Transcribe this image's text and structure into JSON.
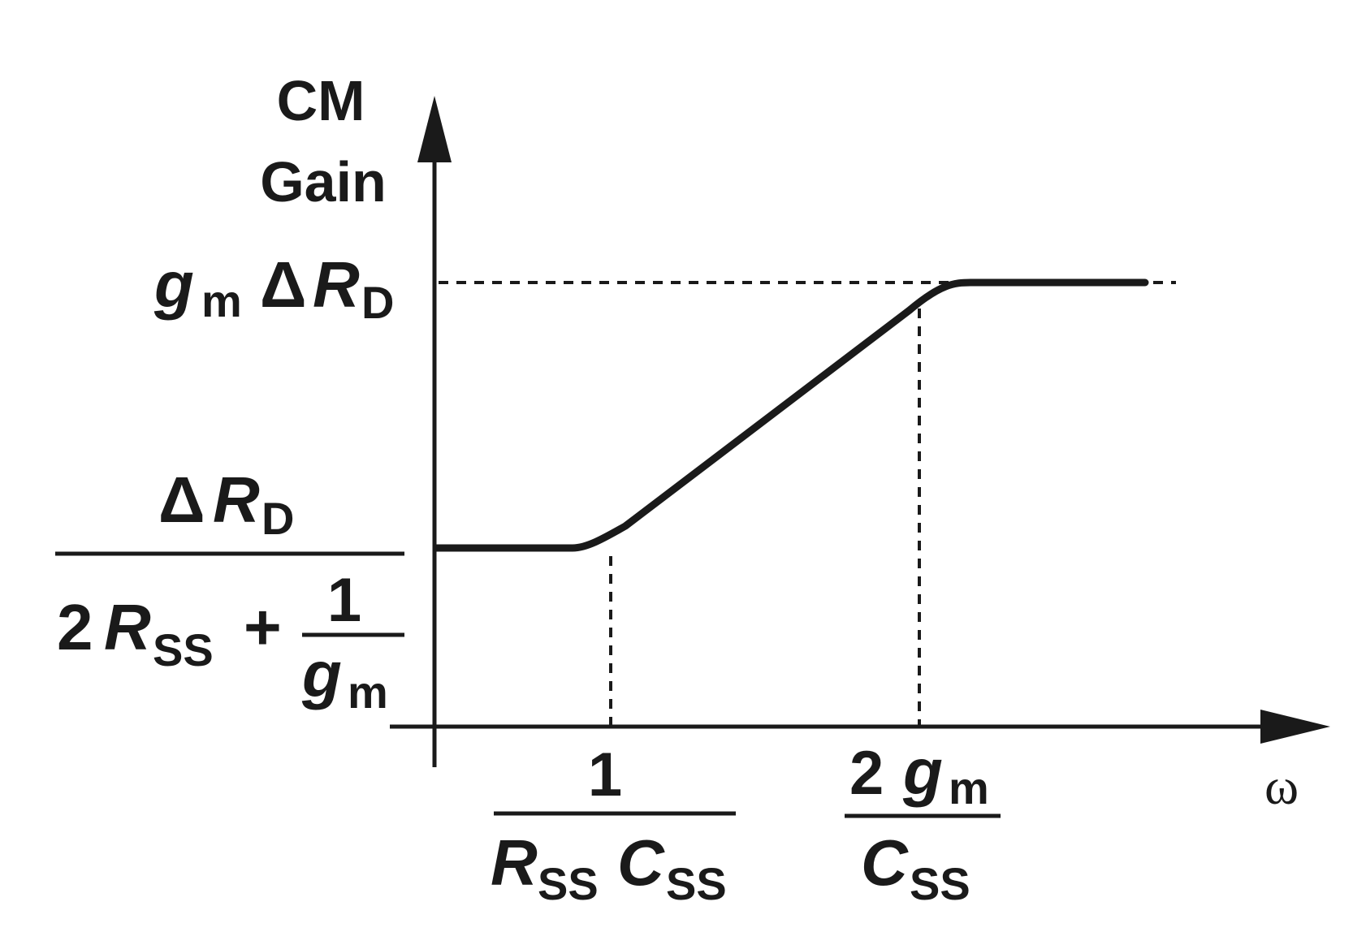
{
  "axes": {
    "y_label_line1": "CM",
    "y_label_line2": "Gain",
    "x_label": "ω"
  },
  "levels": {
    "high": {
      "g": "g",
      "g_sub": "m",
      "delta": "Δ",
      "R": "R",
      "R_sub": "D"
    },
    "low": {
      "num": {
        "delta": "Δ",
        "R": "R",
        "R_sub": "D"
      },
      "den": {
        "two": "2",
        "R": "R",
        "R_sub": "SS",
        "plus": "+",
        "frac_num": "1",
        "frac_g": "g",
        "frac_g_sub": "m"
      }
    }
  },
  "corners": {
    "first": {
      "num": "1",
      "den": {
        "R": "R",
        "R_sub": "SS",
        "C": "C",
        "C_sub": "SS"
      }
    },
    "second": {
      "num": {
        "two": "2",
        "g": "g",
        "g_sub": "m"
      },
      "den": {
        "C": "C",
        "C_sub": "SS"
      }
    }
  },
  "colors": {
    "ink": "#1a1a1a",
    "background": "#ffffff"
  }
}
